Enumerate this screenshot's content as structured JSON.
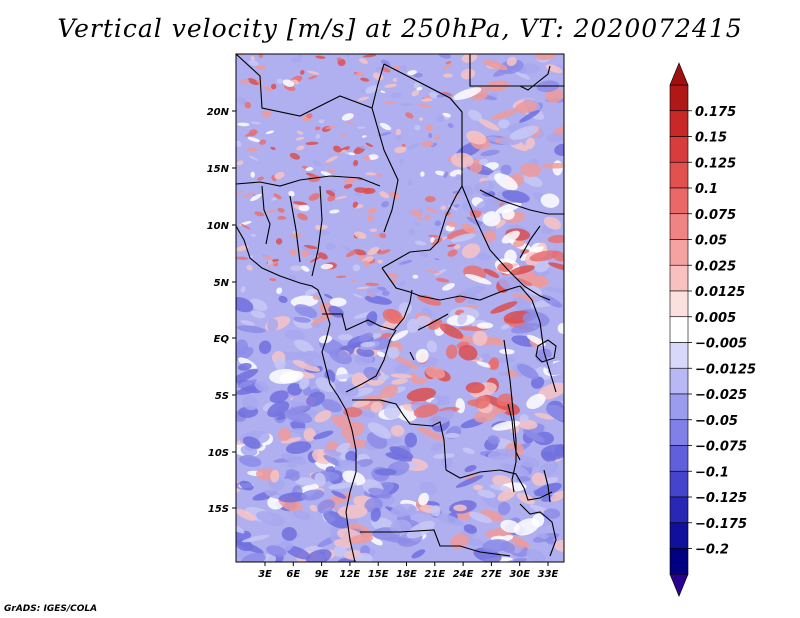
{
  "title": "Vertical velocity [m/s] at 250hPa, VT: 2020072415",
  "credit": "GrADS: IGES/COLA",
  "map": {
    "lat_labels": [
      "20N",
      "15N",
      "10N",
      "5N",
      "EQ",
      "5S",
      "10S",
      "15S"
    ],
    "lon_labels": [
      "3E",
      "6E",
      "9E",
      "12E",
      "15E",
      "18E",
      "21E",
      "24E",
      "27E",
      "30E",
      "33E"
    ]
  },
  "colorbar": {
    "labels": [
      "0.175",
      "0.15",
      "0.125",
      "0.1",
      "0.075",
      "0.05",
      "0.025",
      "0.0125",
      "0.005",
      "−0.005",
      "−0.0125",
      "−0.025",
      "−0.05",
      "−0.075",
      "−0.1",
      "−0.125",
      "−0.175",
      "−0.2"
    ],
    "colors": [
      "#b01818",
      "#c82828",
      "#d83c3c",
      "#e25050",
      "#ea6868",
      "#f08484",
      "#f5a2a2",
      "#f9c0c0",
      "#fbe0e0",
      "#ffffff",
      "#d8d8fb",
      "#b8b8f5",
      "#9c9cee",
      "#8080e6",
      "#6060dc",
      "#4444cc",
      "#2828b4",
      "#10109c",
      "#000080"
    ],
    "top_arrow_color": "#a01010",
    "bottom_arrow_color": "#2a0090"
  },
  "field_colors": {
    "positive": [
      "#f7c4c4",
      "#ef9a9a",
      "#e77070",
      "#dc4f4f"
    ],
    "negative": [
      "#c8c8f6",
      "#a8a8f0",
      "#8c8ce8",
      "#7070de"
    ],
    "neutral": "#ffffff"
  }
}
